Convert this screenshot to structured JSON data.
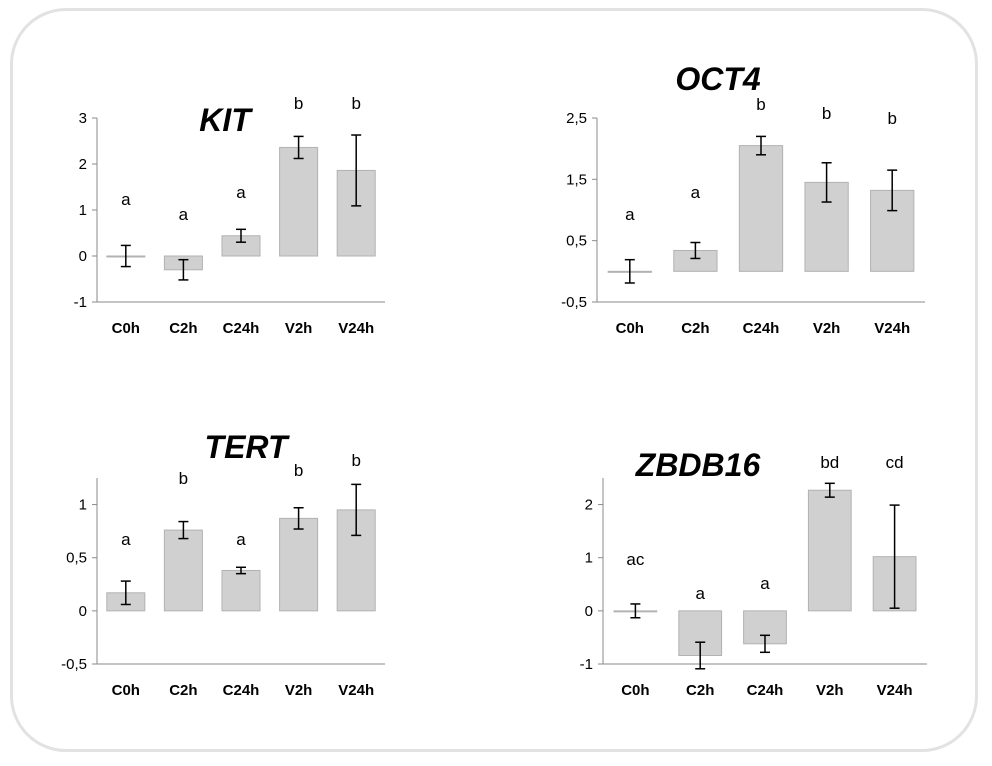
{
  "chart_data": [
    {
      "type": "bar",
      "title": "KIT",
      "categories": [
        "C0h",
        "C2h",
        "C24h",
        "V2h",
        "V24h"
      ],
      "values": [
        0.0,
        -0.3,
        0.44,
        2.36,
        1.86
      ],
      "errors": [
        0.23,
        0.22,
        0.14,
        0.24,
        0.77
      ],
      "significance": [
        "a",
        "a",
        "a",
        "b",
        "b"
      ],
      "yticks": [
        "-1",
        "0",
        "1",
        "2",
        "3"
      ],
      "ylim": [
        -1,
        3
      ],
      "xlabel": "",
      "ylabel": "",
      "bar_color": "#d0d0d0",
      "grid": false
    },
    {
      "type": "bar",
      "title": "OCT4",
      "categories": [
        "C0h",
        "C2h",
        "C24h",
        "V2h",
        "V24h"
      ],
      "values": [
        0.0,
        0.34,
        2.05,
        1.45,
        1.32
      ],
      "errors": [
        0.19,
        0.13,
        0.15,
        0.32,
        0.33
      ],
      "significance": [
        "a",
        "a",
        "b",
        "b",
        "b"
      ],
      "yticks": [
        "-0,5",
        "0,5",
        "1,5",
        "2,5"
      ],
      "ylim": [
        -0.5,
        2.5
      ],
      "xlabel": "",
      "ylabel": "",
      "bar_color": "#d0d0d0",
      "grid": false
    },
    {
      "type": "bar",
      "title": "TERT",
      "categories": [
        "C0h",
        "C2h",
        "C24h",
        "V2h",
        "V24h"
      ],
      "values": [
        0.17,
        0.76,
        0.38,
        0.87,
        0.95
      ],
      "errors": [
        0.11,
        0.08,
        0.03,
        0.1,
        0.24
      ],
      "significance": [
        "a",
        "b",
        "a",
        "b",
        "b"
      ],
      "yticks": [
        "-0,5",
        "0",
        "0,5",
        "1"
      ],
      "ylim": [
        -0.5,
        1.25
      ],
      "xlabel": "",
      "ylabel": "",
      "bar_color": "#d0d0d0",
      "grid": false
    },
    {
      "type": "bar",
      "title": "ZBDB16",
      "categories": [
        "C0h",
        "C2h",
        "C24h",
        "V2h",
        "V24h"
      ],
      "values": [
        0.0,
        -0.84,
        -0.62,
        2.27,
        1.02
      ],
      "errors": [
        0.13,
        0.25,
        0.16,
        0.13,
        0.97
      ],
      "significance": [
        "ac",
        "a",
        "a",
        "bd",
        "cd"
      ],
      "yticks": [
        "-1",
        "0",
        "1",
        "2"
      ],
      "ylim": [
        -1,
        2.5
      ],
      "xlabel": "",
      "ylabel": "",
      "bar_color": "#d0d0d0",
      "grid": false
    }
  ]
}
